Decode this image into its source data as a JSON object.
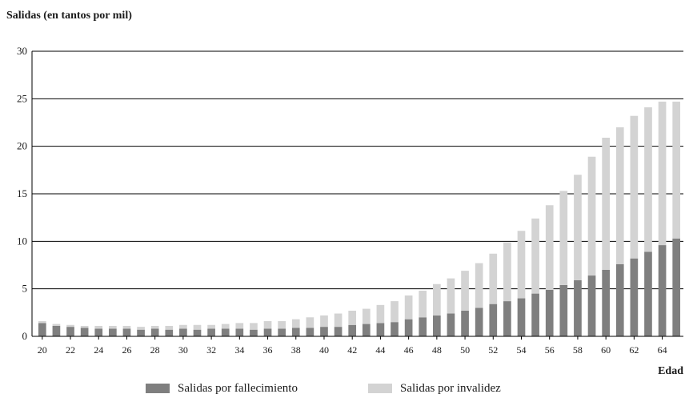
{
  "chart_data": {
    "type": "bar",
    "stacked": true,
    "title": "Salidas (en tantos por mil)",
    "xlabel": "Edad",
    "ylabel": "",
    "ylim": [
      0,
      30
    ],
    "yticks": [
      0,
      5,
      10,
      15,
      20,
      25,
      30
    ],
    "grid": "horizontal",
    "legend_position": "bottom",
    "categories": [
      20,
      21,
      22,
      23,
      24,
      25,
      26,
      27,
      28,
      29,
      30,
      31,
      32,
      33,
      34,
      35,
      36,
      37,
      38,
      39,
      40,
      41,
      42,
      43,
      44,
      45,
      46,
      47,
      48,
      49,
      50,
      51,
      52,
      53,
      54,
      55,
      56,
      57,
      58,
      59,
      60,
      61,
      62,
      63,
      64,
      65
    ],
    "xtick_labels": [
      "20",
      "22",
      "24",
      "26",
      "28",
      "30",
      "32",
      "34",
      "36",
      "38",
      "40",
      "42",
      "44",
      "46",
      "48",
      "50",
      "52",
      "54",
      "56",
      "58",
      "60",
      "62",
      "64"
    ],
    "series": [
      {
        "name": "Salidas por fallecimiento",
        "color": "#7f7f7f",
        "values": [
          1.4,
          1.1,
          1.0,
          0.9,
          0.8,
          0.8,
          0.8,
          0.7,
          0.8,
          0.7,
          0.8,
          0.7,
          0.8,
          0.8,
          0.8,
          0.7,
          0.8,
          0.8,
          0.9,
          0.9,
          1.0,
          1.0,
          1.2,
          1.3,
          1.4,
          1.5,
          1.8,
          2.0,
          2.2,
          2.4,
          2.7,
          3.0,
          3.4,
          3.7,
          4.0,
          4.5,
          4.9,
          5.4,
          5.9,
          6.4,
          7.0,
          7.6,
          8.2,
          8.9,
          9.6,
          10.3
        ]
      },
      {
        "name": "Salidas por invalidez",
        "color": "#d3d3d3",
        "values": [
          0.2,
          0.2,
          0.2,
          0.2,
          0.3,
          0.3,
          0.3,
          0.3,
          0.3,
          0.4,
          0.4,
          0.5,
          0.4,
          0.5,
          0.6,
          0.7,
          0.8,
          0.8,
          0.9,
          1.1,
          1.2,
          1.4,
          1.5,
          1.6,
          1.9,
          2.2,
          2.5,
          2.8,
          3.3,
          3.7,
          4.2,
          4.7,
          5.3,
          6.2,
          7.1,
          7.9,
          8.9,
          9.9,
          11.1,
          12.5,
          13.9,
          14.4,
          15.0,
          15.2,
          15.1,
          14.4
        ]
      }
    ]
  }
}
